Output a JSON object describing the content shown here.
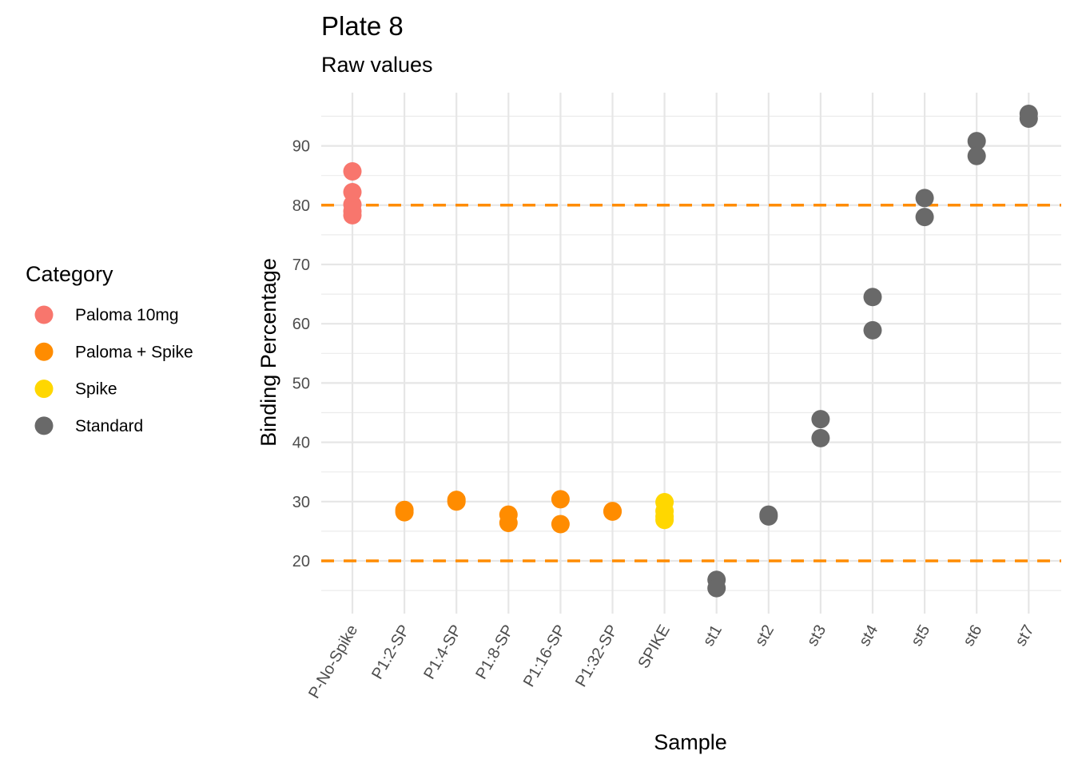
{
  "chart_data": {
    "type": "scatter",
    "title": "Plate 8",
    "subtitle": "Raw values",
    "xlabel": "Sample",
    "ylabel": "Binding Percentage",
    "categories": [
      "P-No-Spike",
      "P1:2-SP",
      "P1:4-SP",
      "P1:8-SP",
      "P1:16-SP",
      "P1:32-SP",
      "SPIKE",
      "st1",
      "st2",
      "st3",
      "st4",
      "st5",
      "st6",
      "st7"
    ],
    "ylim": [
      12,
      100
    ],
    "yticks": [
      20,
      30,
      40,
      50,
      60,
      70,
      80,
      90
    ],
    "grid": true,
    "legend_position": "left",
    "legend_title": "Category",
    "reference_lines": [
      {
        "y": 80,
        "style": "dashed",
        "color": "#FF8C00"
      },
      {
        "y": 20,
        "style": "dashed",
        "color": "#FF8C00"
      }
    ],
    "series": [
      {
        "name": "Paloma 10mg",
        "color": "#F8766D",
        "points": [
          {
            "x": "P-No-Spike",
            "y": 85.7
          },
          {
            "x": "P-No-Spike",
            "y": 82.2
          },
          {
            "x": "P-No-Spike",
            "y": 80.1
          },
          {
            "x": "P-No-Spike",
            "y": 79.0
          },
          {
            "x": "P-No-Spike",
            "y": 78.3
          }
        ]
      },
      {
        "name": "Paloma + Spike",
        "color": "#FF8C00",
        "points": [
          {
            "x": "P1:2-SP",
            "y": 28.6
          },
          {
            "x": "P1:2-SP",
            "y": 28.2
          },
          {
            "x": "P1:4-SP",
            "y": 30.3
          },
          {
            "x": "P1:4-SP",
            "y": 30.0
          },
          {
            "x": "P1:8-SP",
            "y": 27.8
          },
          {
            "x": "P1:8-SP",
            "y": 26.4
          },
          {
            "x": "P1:16-SP",
            "y": 30.4
          },
          {
            "x": "P1:16-SP",
            "y": 26.2
          },
          {
            "x": "P1:32-SP",
            "y": 28.4
          },
          {
            "x": "P1:32-SP",
            "y": 28.3
          }
        ]
      },
      {
        "name": "Spike",
        "color": "#FFD700",
        "points": [
          {
            "x": "SPIKE",
            "y": 29.9
          },
          {
            "x": "SPIKE",
            "y": 28.4
          },
          {
            "x": "SPIKE",
            "y": 27.5
          },
          {
            "x": "SPIKE",
            "y": 26.9
          }
        ]
      },
      {
        "name": "Standard",
        "color": "#696969",
        "points": [
          {
            "x": "st1",
            "y": 16.8
          },
          {
            "x": "st1",
            "y": 15.4
          },
          {
            "x": "st2",
            "y": 27.8
          },
          {
            "x": "st2",
            "y": 27.5
          },
          {
            "x": "st3",
            "y": 43.9
          },
          {
            "x": "st3",
            "y": 40.7
          },
          {
            "x": "st4",
            "y": 64.5
          },
          {
            "x": "st4",
            "y": 58.9
          },
          {
            "x": "st5",
            "y": 81.2
          },
          {
            "x": "st5",
            "y": 78.0
          },
          {
            "x": "st6",
            "y": 90.8
          },
          {
            "x": "st6",
            "y": 88.3
          },
          {
            "x": "st7",
            "y": 95.4
          },
          {
            "x": "st7",
            "y": 94.6
          }
        ]
      }
    ]
  }
}
